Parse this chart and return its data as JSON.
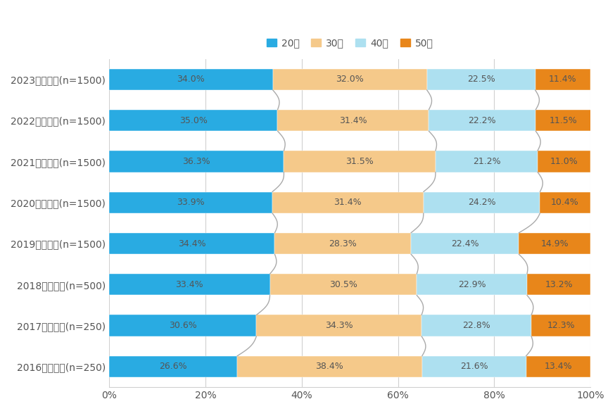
{
  "years": [
    "2023年本調査(n=1500)",
    "2022年本調査(n=1500)",
    "2021年本調査(n=1500)",
    "2020年本調査(n=1500)",
    "2019年本調査(n=1500)",
    "2018年本調査(n=500)",
    "2017年本調査(n=250)",
    "2016年本調査(n=250)"
  ],
  "data": {
    "20代": [
      34.0,
      35.0,
      36.3,
      33.9,
      34.4,
      33.4,
      30.6,
      26.6
    ],
    "30代": [
      32.0,
      31.4,
      31.5,
      31.4,
      28.3,
      30.5,
      34.3,
      38.4
    ],
    "40代": [
      22.5,
      22.2,
      21.2,
      24.2,
      22.4,
      22.9,
      22.8,
      21.6
    ],
    "50代": [
      11.4,
      11.5,
      11.0,
      10.4,
      14.9,
      13.2,
      12.3,
      13.4
    ]
  },
  "colors": {
    "20代": "#29ABE2",
    "30代": "#F5C98A",
    "40代": "#ADE0F0",
    "50代": "#E8861A"
  },
  "legend_order": [
    "20代",
    "30代",
    "40代",
    "50代"
  ],
  "background_color": "#ffffff",
  "bar_height": 0.52,
  "xlim": [
    0,
    100
  ],
  "xticks": [
    0,
    20,
    40,
    60,
    80,
    100
  ],
  "xtick_labels": [
    "0%",
    "20%",
    "40%",
    "60%",
    "80%",
    "100%"
  ],
  "text_color": "#555555",
  "grid_color": "#d0d0d0",
  "wavy_color": "#aaaaaa",
  "font_size_bar_labels": 9,
  "font_size_yticks": 9,
  "font_size_xticks": 9,
  "font_size_legend": 10
}
